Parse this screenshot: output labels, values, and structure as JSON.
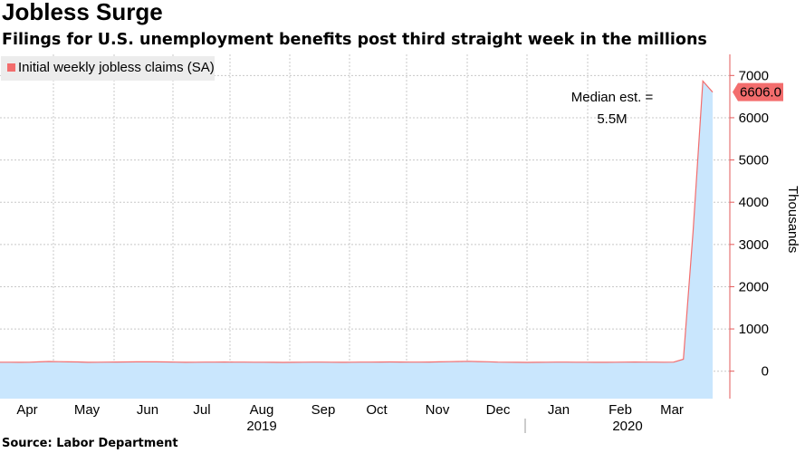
{
  "header": {
    "title": "Jobless Surge",
    "subtitle": "Filings for U.S. unemployment benefits post third straight week in the millions"
  },
  "footer": {
    "source": "Source: Labor Department"
  },
  "colors": {
    "line": "#f36d6d",
    "fill": "#c9e6fd",
    "grid": "#c8c8c8",
    "badge": "#f36d6d"
  },
  "chart_data": {
    "type": "area",
    "title": "Jobless Surge",
    "subtitle": "Filings for U.S. unemployment benefits post third straight week in the millions",
    "series": [
      {
        "name": "Initial weekly jobless claims (SA)",
        "values": [
          212,
          212,
          210,
          212,
          220,
          230,
          225,
          220,
          218,
          210,
          212,
          215,
          217,
          218,
          220,
          220,
          220,
          218,
          215,
          210,
          212,
          214,
          215,
          216,
          215,
          214,
          213,
          212,
          210,
          208,
          210,
          212,
          214,
          215,
          213,
          210,
          212,
          214,
          215,
          216,
          218,
          216,
          215,
          214,
          216,
          220,
          225,
          230,
          234,
          228,
          222,
          215,
          212,
          210,
          208,
          210,
          212,
          214,
          215,
          213,
          212,
          211,
          210,
          212,
          214,
          216,
          215,
          214,
          213,
          215,
          282,
          3307,
          6867,
          6606
        ]
      }
    ],
    "ylabel": "Thousands",
    "ylim": [
      -650,
      7500
    ],
    "yticks": [
      0,
      1000,
      2000,
      3000,
      4000,
      5000,
      6000,
      7000
    ],
    "ytick_labels": [
      "0",
      "1000",
      "2000",
      "3000",
      "4000",
      "5000",
      "6000",
      "7000"
    ],
    "month_labels": [
      "Apr",
      "May",
      "Jun",
      "Jul",
      "Aug",
      "Sep",
      "Oct",
      "Nov",
      "Dec",
      "Jan",
      "Feb",
      "Mar"
    ],
    "year_labels": [
      "2019",
      "2020"
    ],
    "legend_position": "top-left",
    "last_value_label": "6606.0",
    "annotation": [
      "Median est. =",
      "5.5M"
    ],
    "grid": true
  }
}
